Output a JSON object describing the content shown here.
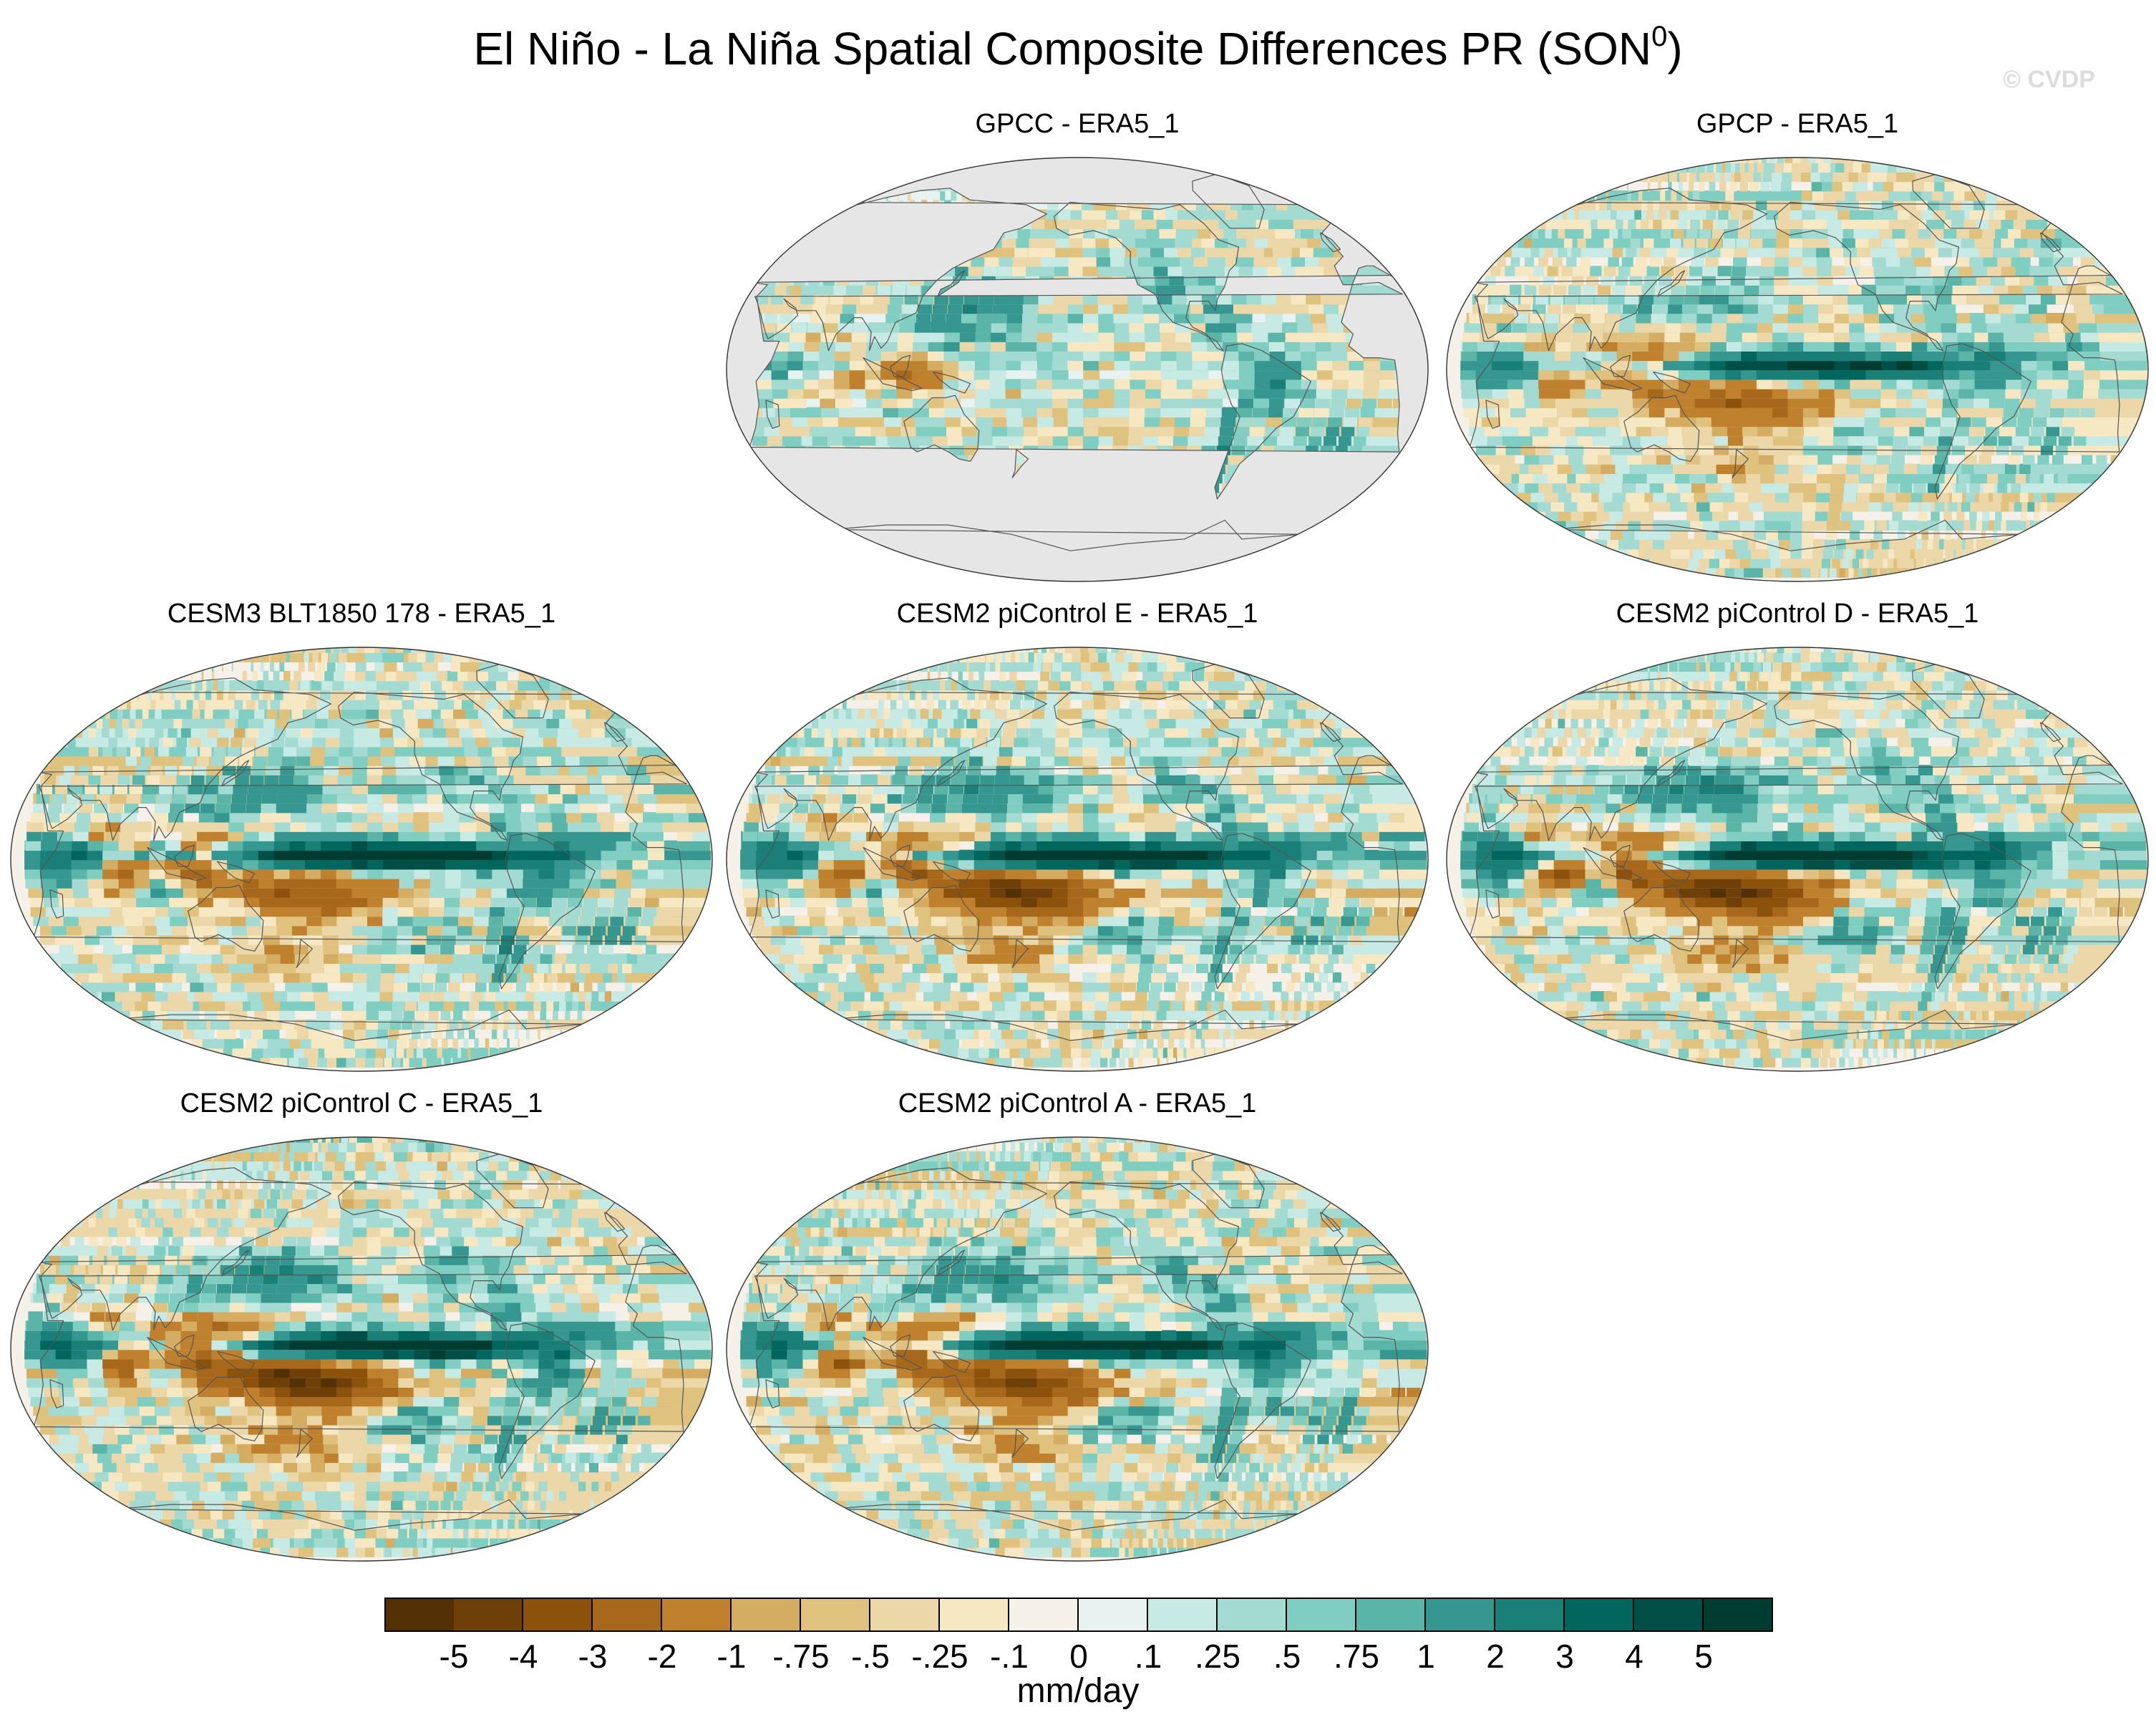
{
  "title_main": "El Niño - La Niña Spatial Composite Differences PR (SON",
  "title_sup": "0",
  "title_close": ")",
  "watermark": "© CVDP",
  "chart_data": {
    "type": "heatmap",
    "variable": "PR",
    "season": "SON",
    "projection": "Robinson (Pacific-centered)",
    "panels": [
      {
        "id": "gpcc",
        "title": "GPCC - ERA5_1",
        "land_only": true,
        "features": {
          "east_pacific_band": 0,
          "maritime_dipole": 0.6,
          "west_pacific_dry": 0.2,
          "south_pacific_dry": 0,
          "indian_ocean_dipole": 0.3,
          "americas_wet": 0.8
        }
      },
      {
        "id": "gpcp",
        "title": "GPCP - ERA5_1",
        "land_only": false,
        "features": {
          "east_pacific_band": 0.75,
          "maritime_dipole": 0.55,
          "west_pacific_dry": 0.6,
          "south_pacific_dry": 0.5,
          "indian_ocean_dipole": 0.55,
          "americas_wet": 0.5
        }
      },
      {
        "id": "cesm3-blt1850-178",
        "title": "CESM3 BLT1850 178 - ERA5_1",
        "land_only": false,
        "features": {
          "east_pacific_band": 1.0,
          "maritime_dipole": 0.8,
          "west_pacific_dry": 0.6,
          "south_pacific_dry": 0.55,
          "indian_ocean_dipole": 0.8,
          "americas_wet": 0.75
        }
      },
      {
        "id": "cesm2-picontrol-e",
        "title": "CESM2 piControl E - ERA5_1",
        "land_only": false,
        "features": {
          "east_pacific_band": 1.0,
          "maritime_dipole": 0.9,
          "west_pacific_dry": 0.8,
          "south_pacific_dry": 0.9,
          "indian_ocean_dipole": 0.95,
          "americas_wet": 0.7
        }
      },
      {
        "id": "cesm2-picontrol-d",
        "title": "CESM2 piControl D - ERA5_1",
        "land_only": false,
        "features": {
          "east_pacific_band": 1.0,
          "maritime_dipole": 1.0,
          "west_pacific_dry": 0.9,
          "south_pacific_dry": 1.0,
          "indian_ocean_dipole": 1.0,
          "americas_wet": 0.8
        }
      },
      {
        "id": "cesm2-picontrol-c",
        "title": "CESM2 piControl C - ERA5_1",
        "land_only": false,
        "features": {
          "east_pacific_band": 1.0,
          "maritime_dipole": 1.0,
          "west_pacific_dry": 1.0,
          "south_pacific_dry": 1.0,
          "indian_ocean_dipole": 1.0,
          "americas_wet": 0.8
        }
      },
      {
        "id": "cesm2-picontrol-a",
        "title": "CESM2 piControl A - ERA5_1",
        "land_only": false,
        "features": {
          "east_pacific_band": 1.0,
          "maritime_dipole": 0.95,
          "west_pacific_dry": 0.9,
          "south_pacific_dry": 0.8,
          "indian_ocean_dipole": 0.95,
          "americas_wet": 0.8
        }
      }
    ],
    "colorbar": {
      "units": "mm/day",
      "levels": [
        "-5",
        "-4",
        "-3",
        "-2",
        "-1",
        "-.75",
        "-.5",
        "-.25",
        "-.1",
        "0",
        ".1",
        ".25",
        ".5",
        ".75",
        "1",
        "2",
        "3",
        "4",
        "5"
      ],
      "colors": [
        "#543005",
        "#6f3f09",
        "#8c510a",
        "#a8681c",
        "#bf812d",
        "#d4ac62",
        "#dfc27d",
        "#ecd7a8",
        "#f6e8c3",
        "#f5f1e8",
        "#e8f3f1",
        "#c7eae5",
        "#a3dbd2",
        "#80cdc1",
        "#5ab4a8",
        "#35978f",
        "#1a7f76",
        "#01665e",
        "#014f47",
        "#003c30"
      ]
    },
    "land_fill_color": "#e6e6e6",
    "coastline_color": "#555555"
  }
}
